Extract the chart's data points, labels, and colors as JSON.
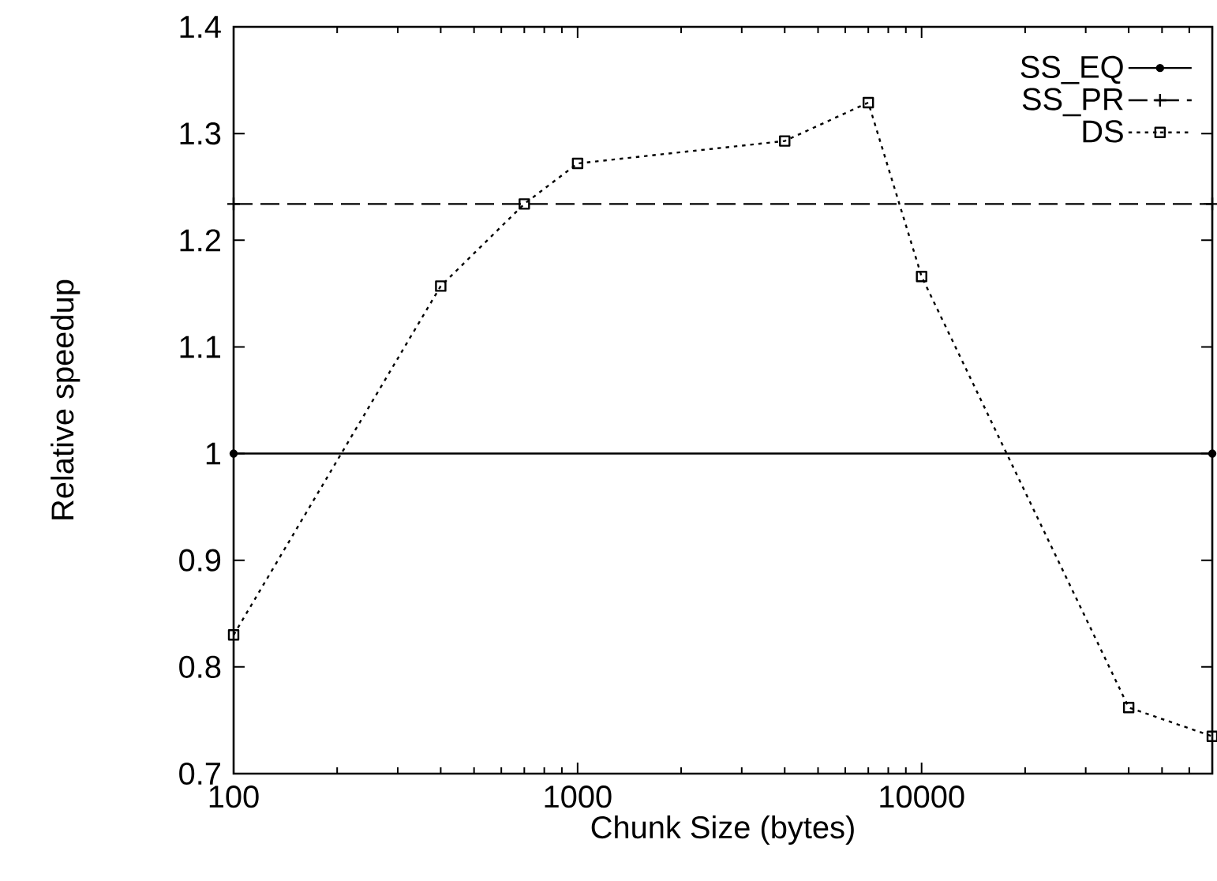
{
  "chart_data": {
    "type": "line",
    "xlabel": "Chunk Size (bytes)",
    "ylabel": "Relative speedup",
    "log": "x",
    "legend": "top right",
    "xlim": [
      100,
      70000
    ],
    "xticks": [
      100,
      1000,
      10000
    ],
    "ylim": [
      0.7,
      1.4
    ],
    "yticks": [
      0.7,
      0.8,
      0.9,
      1,
      1.1,
      1.2,
      1.3,
      1.4
    ],
    "series": [
      {
        "name": "SS_EQ",
        "color": "#000000",
        "marker": "circle",
        "line_style": "solid",
        "x": [
          100,
          70000
        ],
        "values": [
          1.0,
          1.0
        ]
      },
      {
        "name": "SS_PR",
        "color": "#000000",
        "marker": "cross",
        "line_style": "dashed",
        "x": [
          100,
          70000
        ],
        "values": [
          1.234,
          1.234
        ]
      },
      {
        "name": "DS",
        "color": "#000000",
        "marker": "square",
        "line_style": "dotted",
        "x": [
          100,
          400,
          700,
          1000,
          4000,
          7000,
          10000,
          40000,
          70000
        ],
        "values": [
          0.83,
          1.157,
          1.234,
          1.272,
          1.293,
          1.329,
          1.166,
          0.762,
          0.735
        ]
      }
    ]
  }
}
